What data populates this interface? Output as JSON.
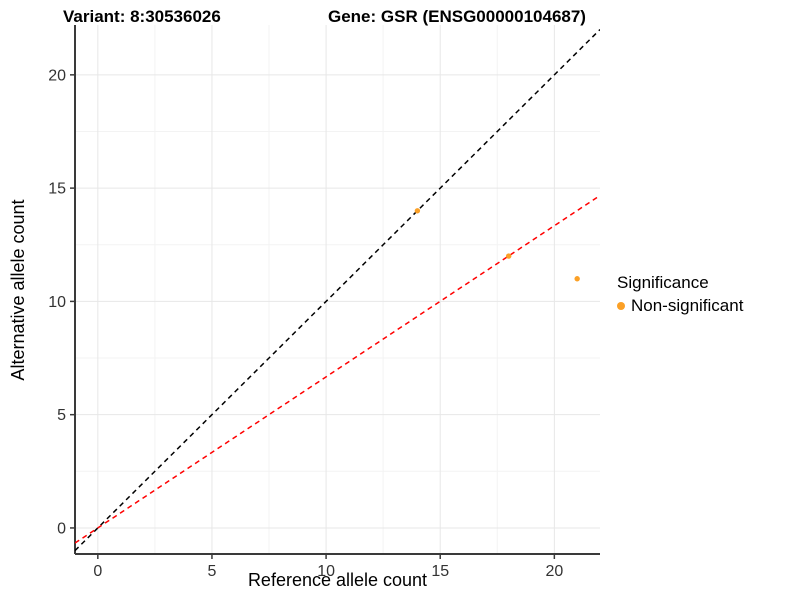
{
  "header": {
    "variant_title": "Variant: 8:30536026",
    "gene_title": "Gene: GSR (ENSG00000104687)"
  },
  "legend": {
    "title": "Significance",
    "items": [
      {
        "label": "Non-significant",
        "color": "#FBA026"
      }
    ]
  },
  "chart_data": {
    "type": "scatter",
    "title": "Variant: 8:30536026  /  Gene: GSR (ENSG00000104687)",
    "xlabel": "Reference allele count",
    "ylabel": "Alternative allele count",
    "xlim": [
      -1,
      22
    ],
    "ylim": [
      -1.15,
      22.2
    ],
    "xticks": [
      0,
      5,
      10,
      15,
      20
    ],
    "yticks": [
      0,
      5,
      10,
      15,
      20
    ],
    "minor_step": 2.5,
    "grid": true,
    "legend_position": "right",
    "series": [
      {
        "name": "Non-significant",
        "color": "#FBA026",
        "points": [
          {
            "x": 14,
            "y": 14
          },
          {
            "x": 18,
            "y": 12
          },
          {
            "x": 21,
            "y": 11
          }
        ]
      }
    ],
    "lines": [
      {
        "name": "identity-line",
        "slope": 1,
        "intercept": 0,
        "color": "#000000",
        "dash": "5 4"
      },
      {
        "name": "allelic-ratio-line",
        "slope": 0.667,
        "intercept": 0,
        "color": "#FF0000",
        "dash": "5 4"
      }
    ]
  },
  "colors": {
    "grid_major": "#E7E7E7",
    "grid_minor": "#F3F3F3",
    "axis_line": "#3A3A3A",
    "tick_label": "#333333",
    "background": "#FFFFFF"
  }
}
